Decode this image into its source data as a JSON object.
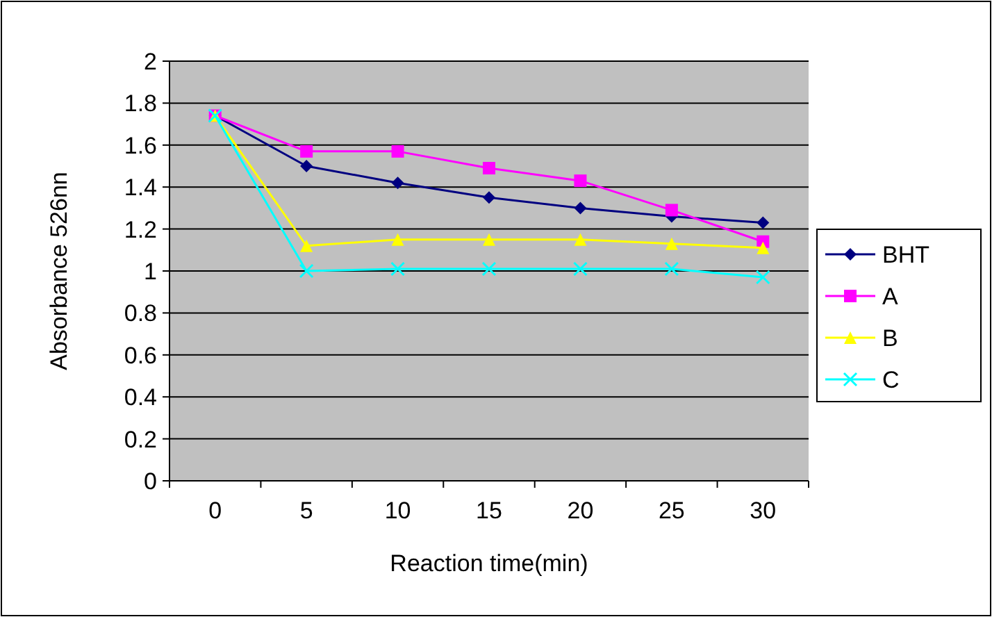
{
  "chart_data": {
    "type": "line",
    "xlabel": "Reaction time(min)",
    "ylabel": "Absorbance 526nn",
    "categories": [
      "0",
      "5",
      "10",
      "15",
      "20",
      "25",
      "30"
    ],
    "ylim": [
      0,
      2
    ],
    "yticks": [
      0,
      0.2,
      0.4,
      0.6,
      0.8,
      1,
      1.2,
      1.4,
      1.6,
      1.8,
      2
    ],
    "grid": "y",
    "legend": "right",
    "line_style": "solid",
    "series": [
      {
        "name": "BHT",
        "color": "#000080",
        "marker": "diamond",
        "values": [
          1.74,
          1.5,
          1.42,
          1.35,
          1.3,
          1.26,
          1.23
        ]
      },
      {
        "name": "A",
        "color": "#ff00ff",
        "marker": "square",
        "values": [
          1.74,
          1.57,
          1.57,
          1.49,
          1.43,
          1.29,
          1.14
        ]
      },
      {
        "name": "B",
        "color": "#ffff00",
        "marker": "triangle",
        "values": [
          1.74,
          1.12,
          1.15,
          1.15,
          1.15,
          1.13,
          1.11
        ]
      },
      {
        "name": "C",
        "color": "#00ffff",
        "marker": "cross",
        "values": [
          1.74,
          1.0,
          1.01,
          1.01,
          1.01,
          1.01,
          0.97
        ]
      }
    ]
  }
}
